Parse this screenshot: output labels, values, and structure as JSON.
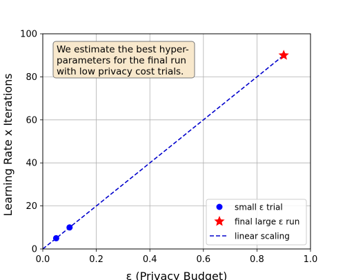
{
  "chart_data": {
    "type": "line",
    "xlabel": "ε (Privacy Budget)",
    "ylabel": "Learning Rate x Iterations",
    "xlim": [
      0.0,
      1.0
    ],
    "ylim": [
      0,
      100
    ],
    "xticks": [
      "0.0",
      "0.2",
      "0.4",
      "0.6",
      "0.8",
      "1.0"
    ],
    "yticks": [
      "0",
      "20",
      "40",
      "60",
      "80",
      "100"
    ],
    "grid": true,
    "legend_position": "bottom-right",
    "series": [
      {
        "name": "small ε trial",
        "kind": "scatter",
        "marker": "circle",
        "color": "#0000ff",
        "points": [
          {
            "x": 0.05,
            "y": 5
          },
          {
            "x": 0.1,
            "y": 10
          }
        ]
      },
      {
        "name": "final large ε run",
        "kind": "scatter",
        "marker": "star",
        "color": "#ff0000",
        "points": [
          {
            "x": 0.9,
            "y": 90
          }
        ]
      },
      {
        "name": "linear scaling",
        "kind": "line",
        "style": "dashed",
        "color": "#0000cc",
        "points": [
          {
            "x": 0.0,
            "y": 0
          },
          {
            "x": 0.9,
            "y": 90
          }
        ]
      }
    ],
    "annotation": {
      "lines": [
        "We estimate the best hyper-",
        "parameters for the final run",
        "with low privacy cost trials."
      ],
      "background": "#f8e8cc"
    }
  }
}
